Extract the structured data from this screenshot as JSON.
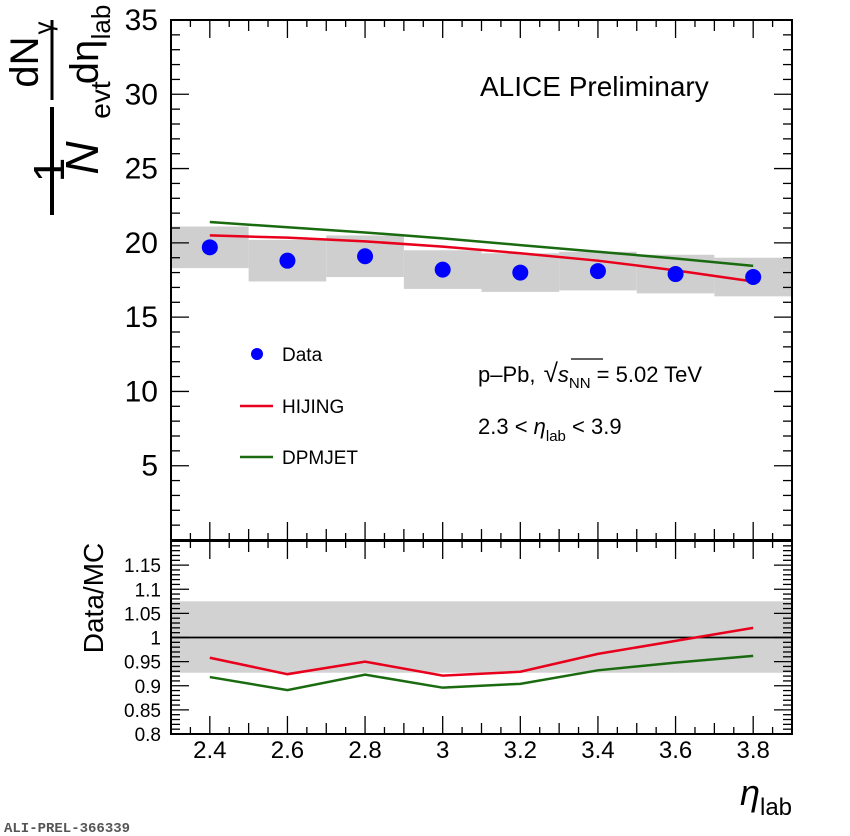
{
  "chart_data": [
    {
      "type": "scatter",
      "panel": "top",
      "label_text": "ALICE Preliminary",
      "ylabel": {
        "one": "1",
        "N": "N",
        "N_sub": "evt",
        "dN": "dN",
        "dN_sub": "γ",
        "deta": "dη",
        "deta_sub": "lab"
      },
      "ylim": [
        0,
        35
      ],
      "xlim": [
        2.3,
        3.9
      ],
      "yticks": [
        "5",
        "10",
        "15",
        "20",
        "25",
        "30",
        "35"
      ],
      "x": [
        2.4,
        2.6,
        2.8,
        3.0,
        3.2,
        3.4,
        3.6,
        3.8
      ],
      "series": [
        {
          "name": "Data",
          "kind": "points",
          "color": "#0000ff",
          "values": [
            19.7,
            18.8,
            19.1,
            18.2,
            18.0,
            18.1,
            17.9,
            17.7
          ],
          "syst": [
            1.4,
            1.4,
            1.4,
            1.3,
            1.3,
            1.3,
            1.3,
            1.3
          ]
        },
        {
          "name": "HIJING",
          "kind": "line",
          "color": "#e8001c",
          "values": [
            20.5,
            20.35,
            20.1,
            19.75,
            19.3,
            18.8,
            18.15,
            17.4
          ]
        },
        {
          "name": "DPMJET",
          "kind": "line",
          "color": "#1a6b10",
          "values": [
            21.4,
            21.05,
            20.7,
            20.3,
            19.85,
            19.4,
            18.95,
            18.45
          ]
        }
      ],
      "annotations": {
        "system_prefix": "p–Pb, ",
        "sqrt": "√",
        "s": "s",
        "s_sub": "NN",
        "energy": " = 5.02 TeV",
        "range_low": "2.3 < ",
        "eta": "η",
        "eta_sub": "lab",
        "range_high": " < 3.9"
      },
      "legend_position": "left-middle"
    },
    {
      "type": "line",
      "panel": "bottom",
      "ylabel": "Data/MC",
      "ylim": [
        0.8,
        1.2
      ],
      "xlim": [
        2.3,
        3.9
      ],
      "yticks": [
        "0.8",
        "0.85",
        "0.9",
        "0.95",
        "1",
        "1.05",
        "1.1",
        "1.15"
      ],
      "xticks": [
        "2.4",
        "2.6",
        "2.8",
        "3",
        "3.2",
        "3.4",
        "3.6",
        "3.8"
      ],
      "xlabel": "η",
      "xlabel_sub": "lab",
      "reference_line": 1,
      "syst_band": [
        0.927,
        1.075
      ],
      "x": [
        2.4,
        2.6,
        2.8,
        3.0,
        3.2,
        3.4,
        3.6,
        3.8
      ],
      "series": [
        {
          "name": "HIJING",
          "color": "#e8001c",
          "values": [
            0.958,
            0.924,
            0.95,
            0.921,
            0.929,
            0.966,
            0.993,
            1.02
          ]
        },
        {
          "name": "DPMJET",
          "color": "#1a6b10",
          "values": [
            0.918,
            0.891,
            0.923,
            0.896,
            0.904,
            0.932,
            0.948,
            0.962
          ]
        }
      ]
    }
  ],
  "footer": "ALI-PREL-366339"
}
